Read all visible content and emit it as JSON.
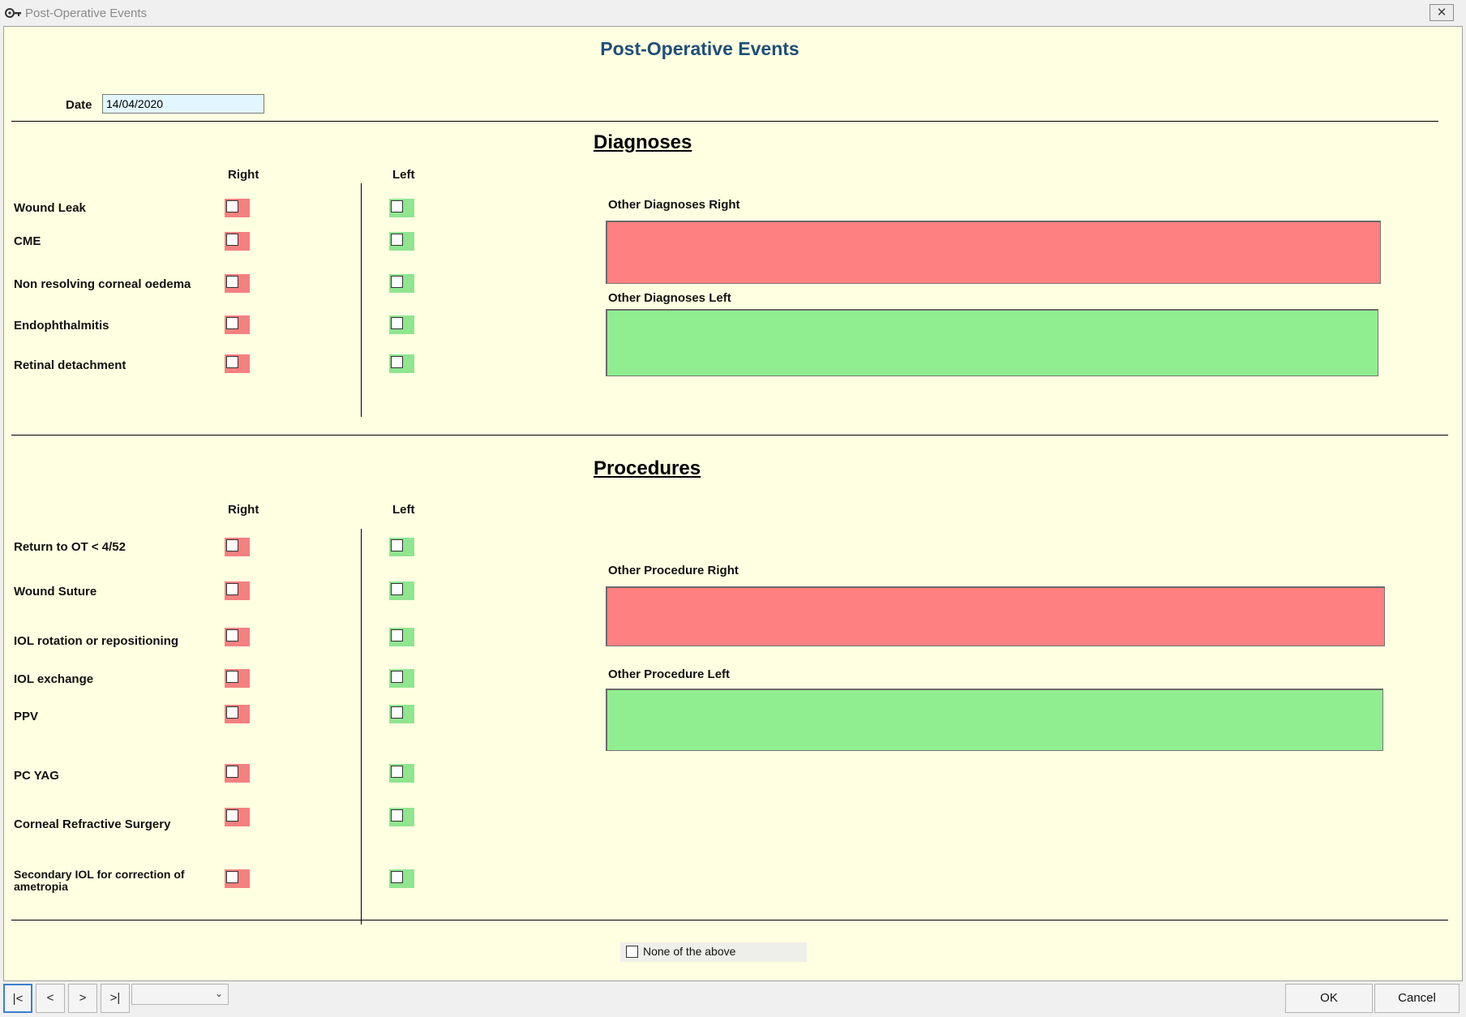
{
  "window": {
    "title": "Post-Operative Events",
    "close_glyph": "✕"
  },
  "form": {
    "title": "Post-Operative Events",
    "date_label": "Date",
    "date_value": "14/04/2020"
  },
  "diagnoses": {
    "title": "Diagnoses",
    "right_header": "Right",
    "left_header": "Left",
    "items": [
      {
        "label": "Wound Leak"
      },
      {
        "label": "CME"
      },
      {
        "label": "Non resolving corneal oedema"
      },
      {
        "label": "Endophthalmitis"
      },
      {
        "label": "Retinal detachment"
      }
    ],
    "other_right_label": "Other Diagnoses Right",
    "other_right_value": "",
    "other_left_label": "Other Diagnoses Left",
    "other_left_value": ""
  },
  "procedures": {
    "title": "Procedures",
    "right_header": "Right",
    "left_header": "Left",
    "items": [
      {
        "label": "Return to OT < 4/52"
      },
      {
        "label": "Wound Suture"
      },
      {
        "label": "IOL rotation or repositioning"
      },
      {
        "label": "IOL exchange"
      },
      {
        "label": "PPV"
      },
      {
        "label": "PC YAG"
      },
      {
        "label": "Corneal Refractive Surgery"
      },
      {
        "label": "Secondary IOL for correction of ametropia"
      }
    ],
    "other_right_label": "Other Procedure Right",
    "other_right_value": "",
    "other_left_label": "Other Procedure Left",
    "other_left_value": ""
  },
  "none_of_the_above": {
    "label": "None of the above",
    "checked": false
  },
  "navigation": {
    "first": "|<",
    "prev": "<",
    "next": ">",
    "last": ">|",
    "combo_value": "",
    "combo_arrow": "⌄"
  },
  "actions": {
    "ok": "OK",
    "cancel": "Cancel"
  },
  "colors": {
    "form_bg": "#ffffe1",
    "title_blue": "#1f4e79",
    "right_red": "#ff8080",
    "left_green": "#90ee90",
    "date_bg": "#e2f6ff"
  }
}
